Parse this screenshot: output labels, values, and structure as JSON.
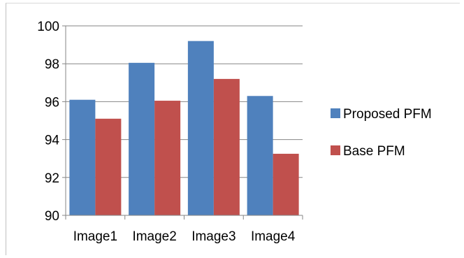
{
  "chart_data": {
    "type": "bar",
    "title": "",
    "xlabel": "",
    "ylabel": "",
    "categories": [
      "Image1",
      "Image2",
      "Image3",
      "Image4"
    ],
    "series": [
      {
        "name": "Proposed PFM",
        "color": "#4F81BD",
        "values": [
          96.1,
          98.05,
          99.2,
          96.3
        ]
      },
      {
        "name": "Base PFM",
        "color": "#C0504D",
        "values": [
          95.1,
          96.05,
          97.2,
          93.25
        ]
      }
    ],
    "ylim": [
      90,
      100
    ],
    "yticks": [
      90,
      92,
      94,
      96,
      98,
      100
    ],
    "grid": true,
    "legend": "right"
  }
}
